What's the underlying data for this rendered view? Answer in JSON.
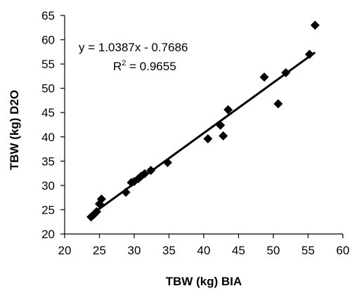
{
  "chart_data": {
    "type": "scatter",
    "xlabel": "TBW (kg) BIA",
    "ylabel": "TBW (kg) D2O",
    "xlim": [
      20,
      60
    ],
    "ylim": [
      20,
      65
    ],
    "xticks": [
      20,
      25,
      30,
      35,
      40,
      45,
      50,
      55,
      60
    ],
    "yticks": [
      20,
      25,
      30,
      35,
      40,
      45,
      50,
      55,
      60,
      65
    ],
    "grid": false,
    "marker": "diamond",
    "color": "#000000",
    "series": [
      {
        "x": [
          23.8,
          24.2,
          24.6,
          25.0,
          25.3,
          28.8,
          29.6,
          30.0,
          30.6,
          31.0,
          31.5,
          32.4,
          34.8,
          40.6,
          42.4,
          42.8,
          43.5,
          48.7,
          50.7,
          51.8,
          55.2,
          56.0
        ],
        "y": [
          23.5,
          24.0,
          24.6,
          26.2,
          27.2,
          28.6,
          30.6,
          30.8,
          31.4,
          31.9,
          32.4,
          33.1,
          34.7,
          39.6,
          42.4,
          40.2,
          45.6,
          52.3,
          46.8,
          53.2,
          57.0,
          63.0
        ]
      }
    ],
    "trendline": {
      "slope": 1.0387,
      "intercept": -0.7686,
      "x_range": [
        23.6,
        56.0
      ],
      "equation": "y = 1.0387x - 0.7686",
      "r2_prefix": "R",
      "r2_sup": "2",
      "r2_value": " = 0.9655"
    }
  }
}
